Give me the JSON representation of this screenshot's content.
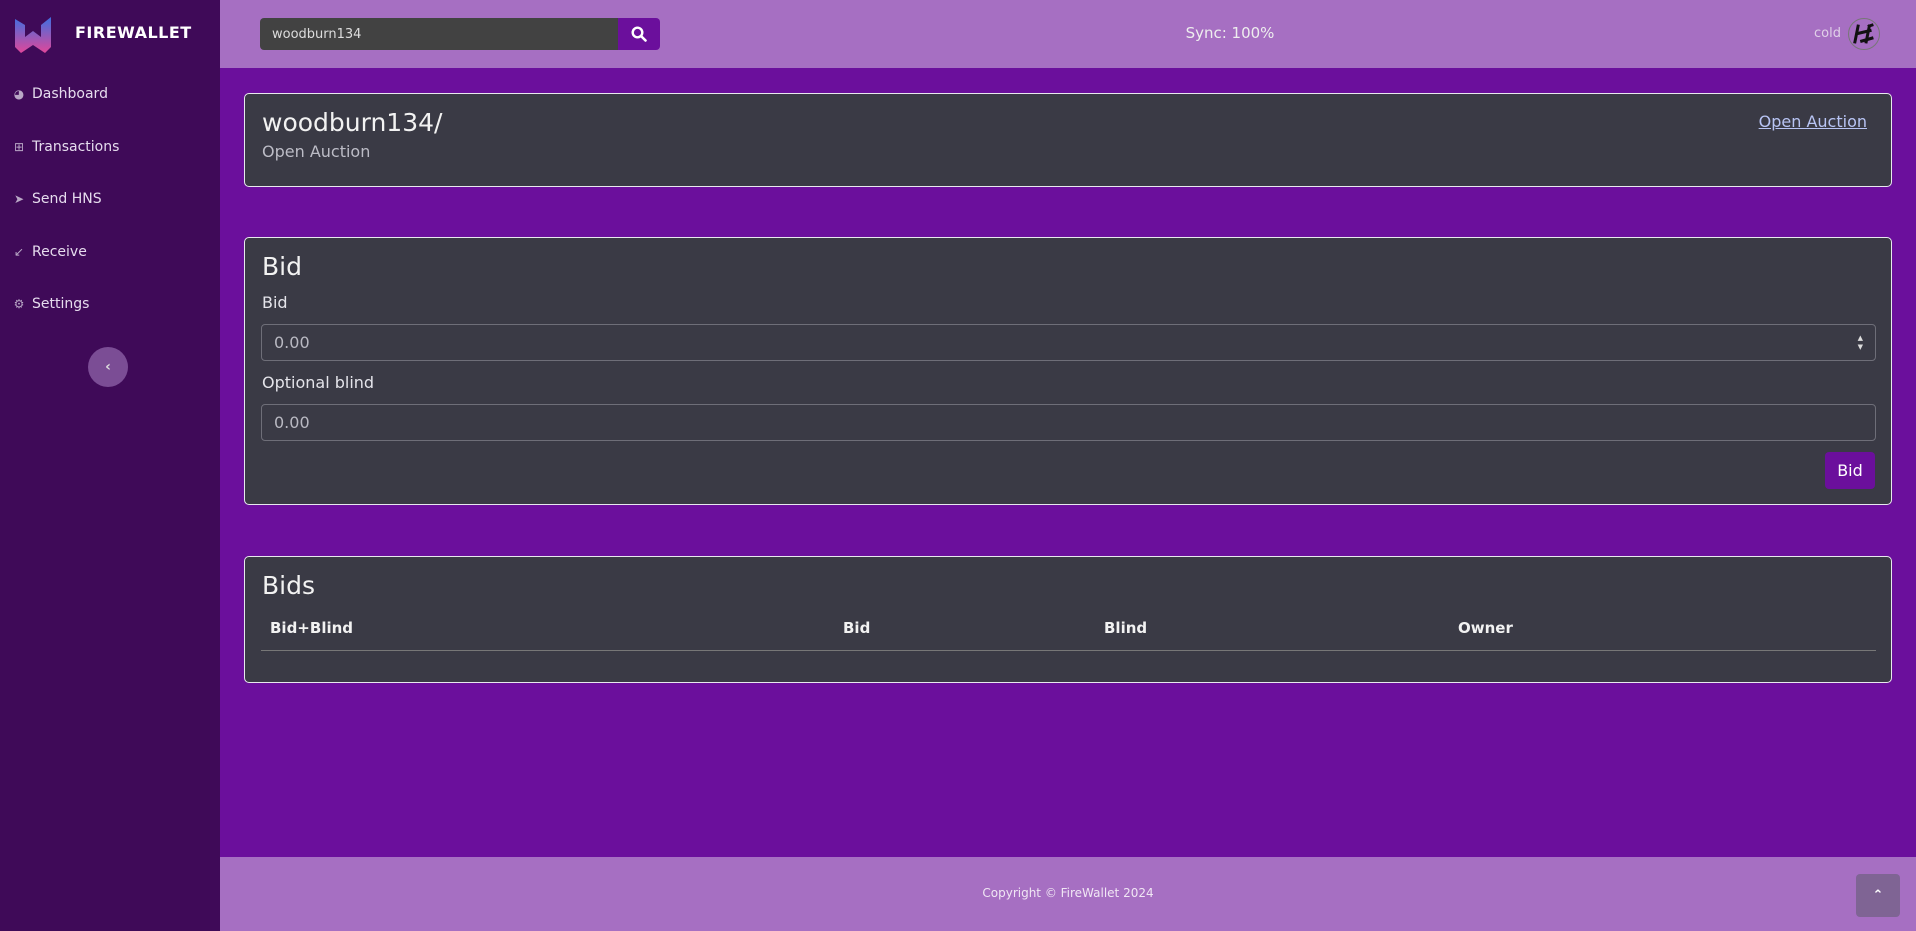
{
  "brand": {
    "name": "FIREWALLET"
  },
  "sidebar": {
    "items": [
      {
        "label": "Dashboard",
        "icon": "tachometer-icon"
      },
      {
        "label": "Transactions",
        "icon": "table-icon"
      },
      {
        "label": "Send HNS",
        "icon": "send-icon"
      },
      {
        "label": "Receive",
        "icon": "arrow-down-left-icon"
      },
      {
        "label": "Settings",
        "icon": "gear-icon"
      }
    ],
    "collapse_icon": "chevron-left-icon"
  },
  "header": {
    "search_value": "woodburn134",
    "sync": "Sync: 100%",
    "account": "cold"
  },
  "domain_card": {
    "title": "woodburn134/",
    "status": "Open Auction",
    "link": "Open Auction"
  },
  "bid_card": {
    "title": "Bid",
    "bid_label": "Bid",
    "bid_placeholder": "0.00",
    "blind_label": "Optional blind",
    "blind_placeholder": "0.00",
    "button": "Bid"
  },
  "bids_card": {
    "title": "Bids",
    "columns": [
      "Bid+Blind",
      "Bid",
      "Blind",
      "Owner"
    ],
    "rows": []
  },
  "footer": {
    "copyright": "Copyright © FireWallet 2024"
  },
  "colors": {
    "sidebar": "#3f0a58",
    "main": "#6b0f9c",
    "header": "#a66fc2",
    "card": "#3a3a45"
  }
}
